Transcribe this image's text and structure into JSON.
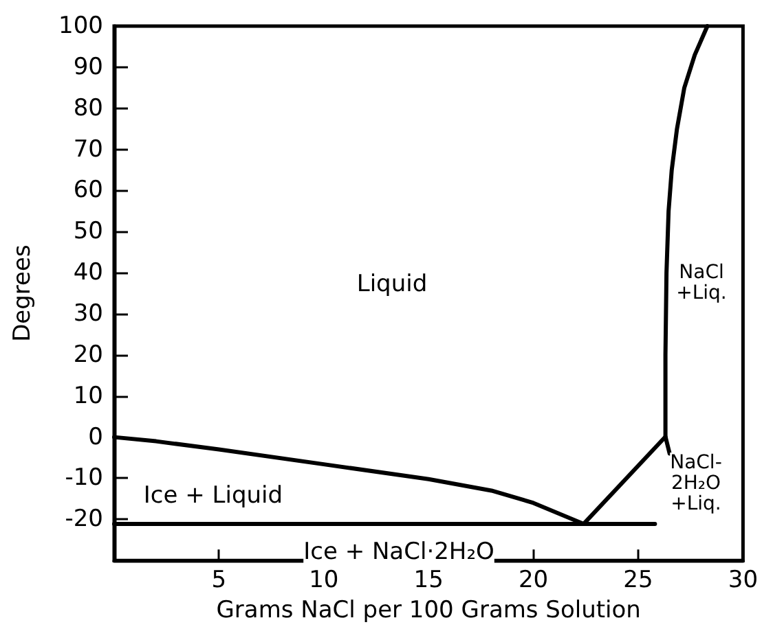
{
  "chart_data": {
    "type": "line",
    "xlabel": "Grams NaCl per 100 Grams Solution",
    "ylabel": "Degrees",
    "xlim": [
      0,
      30
    ],
    "xticks": [
      5,
      10,
      15,
      20,
      25,
      30
    ],
    "ylim": [
      -30,
      100
    ],
    "yticks": [
      -20,
      -10,
      0,
      10,
      20,
      30,
      40,
      50,
      60,
      70,
      80,
      90,
      100
    ],
    "marker": "none",
    "line_style": "solid",
    "grid": false,
    "series": [
      {
        "color": "#000000",
        "x": [
          0,
          2,
          5,
          10,
          15,
          18,
          20,
          22.4
        ],
        "values": [
          0,
          -1,
          -3,
          -6.6,
          -10.2,
          -13,
          -16,
          -21.1
        ]
      },
      {
        "color": "#000000",
        "x": [
          0,
          25.8
        ],
        "values": [
          -21.1,
          -21.1
        ]
      },
      {
        "color": "#000000",
        "x": [
          22.4,
          26.3,
          26.5
        ],
        "values": [
          -21.1,
          0.1,
          -4
        ]
      },
      {
        "color": "#000000",
        "x": [
          26.3,
          26.3,
          26.35,
          26.45,
          26.6,
          26.85,
          27.2,
          27.7,
          28.3
        ],
        "values": [
          0.1,
          20,
          40,
          55,
          65,
          75,
          85,
          93,
          100
        ]
      }
    ],
    "annotations": [
      "Liquid",
      "Ice + Liquid",
      "Ice + NaCl·2H₂O",
      "NaCl\n+Liq.",
      "NaCl-\n2H₂O\n+Liq."
    ]
  }
}
